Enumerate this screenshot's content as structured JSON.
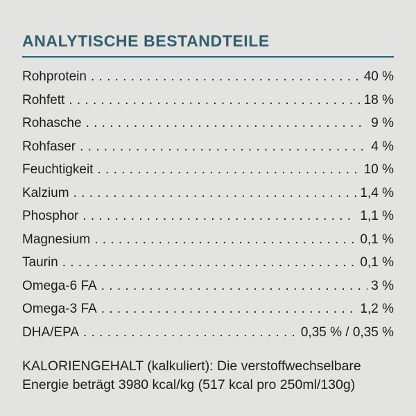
{
  "header": {
    "title": "ANALYTISCHE BESTANDTEILE"
  },
  "colors": {
    "background": "#e3e4e2",
    "accent_teal": "#345d6c",
    "text": "#1b1b1b"
  },
  "nutrients": [
    {
      "label": "Rohprotein",
      "value": "40 %"
    },
    {
      "label": "Rohfett",
      "value": "18 %"
    },
    {
      "label": "Rohasche",
      "value": "9 %"
    },
    {
      "label": "Rohfaser",
      "value": "4 %"
    },
    {
      "label": "Feuchtigkeit",
      "value": "10 %"
    },
    {
      "label": "Kalzium",
      "value": "1,4 %"
    },
    {
      "label": "Phosphor",
      "value": "1,1 %"
    },
    {
      "label": "Magnesium",
      "value": "0,1 %"
    },
    {
      "label": "Taurin",
      "value": "0,1 %"
    },
    {
      "label": "Omega-6 FA",
      "value": "3 %"
    },
    {
      "label": "Omega-3 FA",
      "value": "1,2 %"
    },
    {
      "label": "DHA/EPA",
      "value": "0,35 % / 0,35 %"
    }
  ],
  "footer": {
    "line1": "KALORIENGEHALT (kalkuliert): Die verstoffwechselbare",
    "line2": "Energie beträgt 3980 kcal/kg (517 kcal pro 250ml/130g)"
  }
}
